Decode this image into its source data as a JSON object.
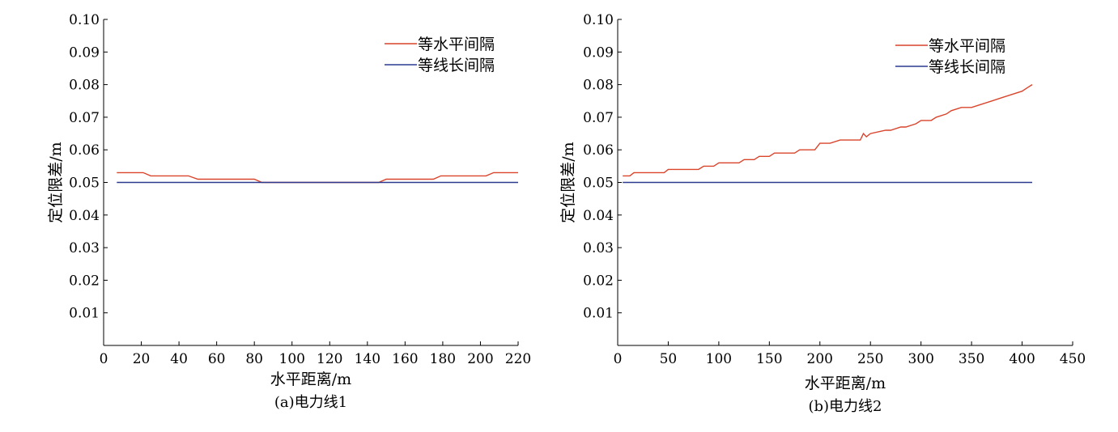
{
  "chart_data": [
    {
      "type": "line",
      "caption": "(a)电力线1",
      "xlabel": "水平距离/m",
      "ylabel": "定位限差/m",
      "xlim": [
        0,
        220
      ],
      "ylim": [
        0,
        0.1
      ],
      "xticks": [
        0,
        20,
        40,
        60,
        80,
        100,
        120,
        140,
        160,
        180,
        200,
        220
      ],
      "yticks": [
        0.01,
        0.02,
        0.03,
        0.04,
        0.05,
        0.06,
        0.07,
        0.08,
        0.09,
        0.1
      ],
      "ytick_labels": [
        "0.01",
        "0.02",
        "0.03",
        "0.04",
        "0.05",
        "0.06",
        "0.07",
        "0.08",
        "0.09",
        "0.10"
      ],
      "legend_position": "top-right",
      "series": [
        {
          "name": "等水平间隔",
          "color": "#d9442b",
          "x": [
            7,
            21,
            25,
            45,
            50,
            80,
            84,
            146,
            150,
            175,
            179,
            203,
            207,
            220
          ],
          "y": [
            0.053,
            0.053,
            0.052,
            0.052,
            0.051,
            0.051,
            0.05,
            0.05,
            0.051,
            0.051,
            0.052,
            0.052,
            0.053,
            0.053
          ]
        },
        {
          "name": "等线长间隔",
          "color": "#2b3a8f",
          "x": [
            7,
            220
          ],
          "y": [
            0.05,
            0.05
          ]
        }
      ]
    },
    {
      "type": "line",
      "caption": "(b)电力线2",
      "xlabel": "水平距离/m",
      "ylabel": "定位限差/m",
      "xlim": [
        0,
        450
      ],
      "ylim": [
        0,
        0.1
      ],
      "xticks": [
        0,
        50,
        100,
        150,
        200,
        250,
        300,
        350,
        400,
        450
      ],
      "yticks": [
        0.01,
        0.02,
        0.03,
        0.04,
        0.05,
        0.06,
        0.07,
        0.08,
        0.09,
        0.1
      ],
      "ytick_labels": [
        "0.01",
        "0.02",
        "0.03",
        "0.04",
        "0.05",
        "0.06",
        "0.07",
        "0.08",
        "0.09",
        "0.10"
      ],
      "legend_position": "top-right",
      "series": [
        {
          "name": "等水平间隔",
          "color": "#d9442b",
          "x": [
            5,
            12,
            16,
            30,
            46,
            50,
            80,
            85,
            95,
            100,
            120,
            125,
            135,
            140,
            150,
            155,
            175,
            180,
            195,
            200,
            210,
            220,
            240,
            243,
            246,
            250,
            265,
            270,
            280,
            285,
            295,
            300,
            310,
            315,
            325,
            330,
            340,
            350,
            360,
            370,
            380,
            390,
            400,
            405,
            410
          ],
          "y": [
            0.052,
            0.052,
            0.053,
            0.053,
            0.053,
            0.054,
            0.054,
            0.055,
            0.055,
            0.056,
            0.056,
            0.057,
            0.057,
            0.058,
            0.058,
            0.059,
            0.059,
            0.06,
            0.06,
            0.062,
            0.062,
            0.063,
            0.063,
            0.065,
            0.064,
            0.065,
            0.066,
            0.066,
            0.067,
            0.067,
            0.068,
            0.069,
            0.069,
            0.07,
            0.071,
            0.072,
            0.073,
            0.073,
            0.074,
            0.075,
            0.076,
            0.077,
            0.078,
            0.079,
            0.08
          ]
        },
        {
          "name": "等线长间隔",
          "color": "#2b3a8f",
          "x": [
            5,
            410
          ],
          "y": [
            0.05,
            0.05
          ]
        }
      ]
    }
  ]
}
